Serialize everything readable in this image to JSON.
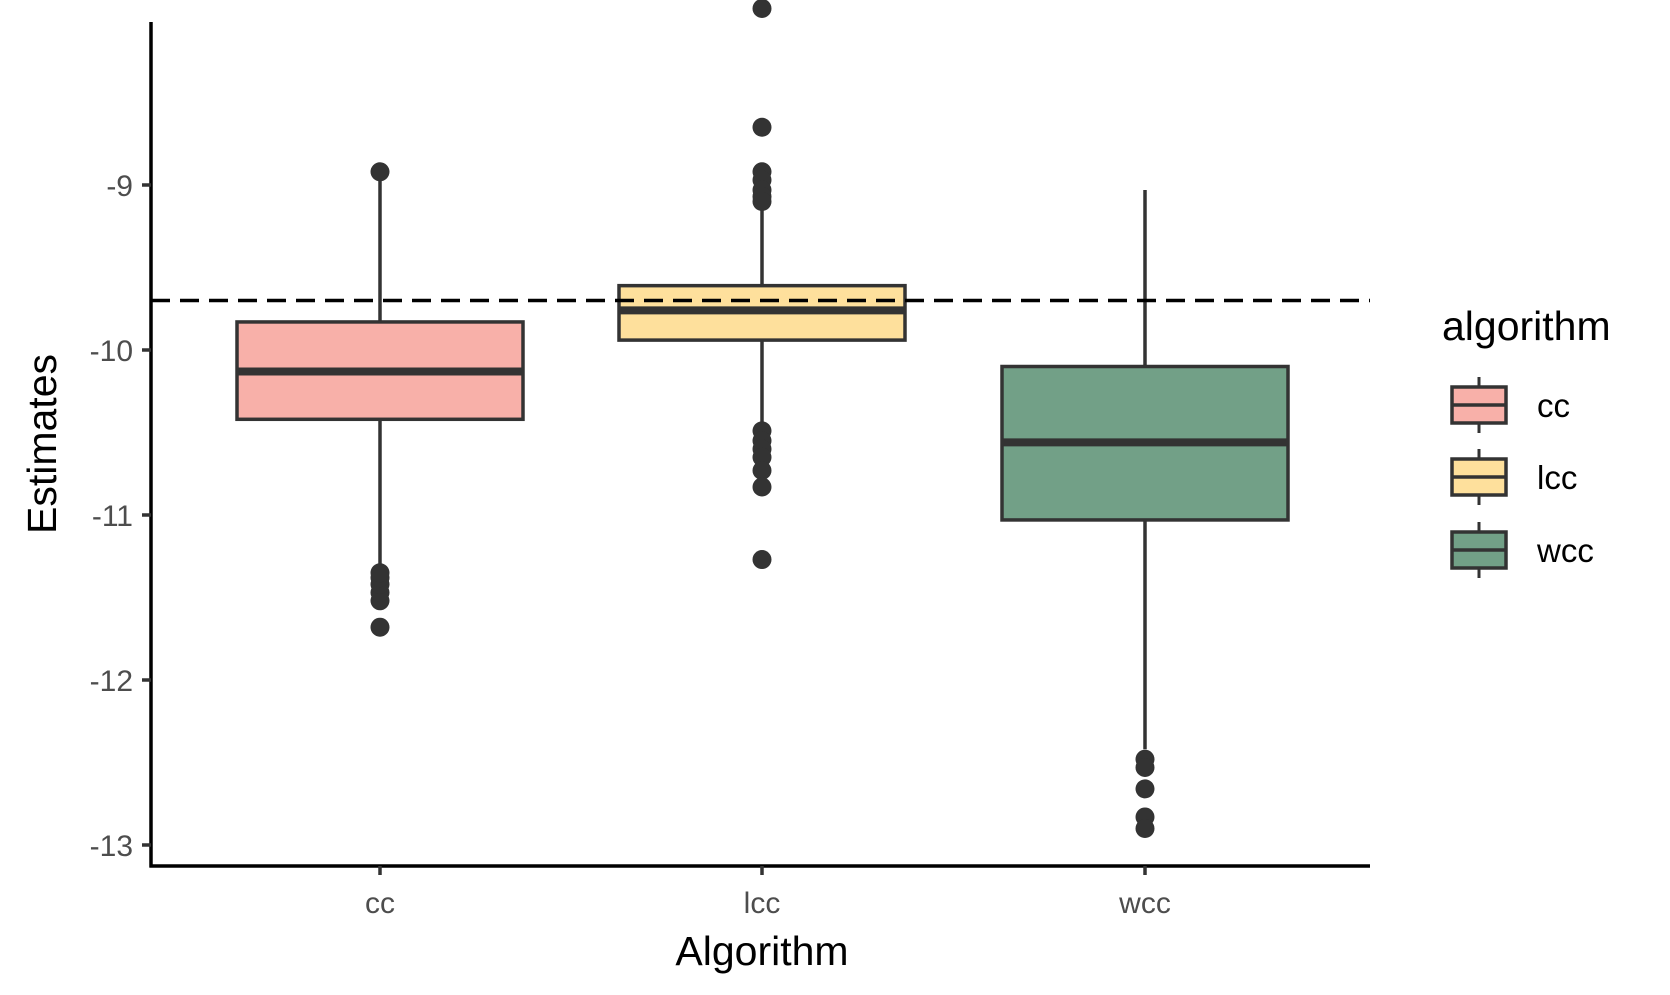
{
  "chart_data": {
    "type": "boxplot",
    "xlabel": "Algorithm",
    "ylabel": "Estimates",
    "ylim": [
      -13.12,
      -7.93
    ],
    "yticks": [
      -9,
      -10,
      -11,
      -12,
      -13
    ],
    "ytick_labels": [
      "-9",
      "-10",
      "-11",
      "-12",
      "-13"
    ],
    "reference_line": {
      "y": -9.7,
      "style": "dashed",
      "color": "#000000"
    },
    "categories": [
      "cc",
      "lcc",
      "wcc"
    ],
    "series": [
      {
        "name": "cc",
        "color": "#f8b0a9",
        "min": -11.3,
        "q1": -10.42,
        "median": -10.13,
        "q3": -9.83,
        "max": -8.93,
        "outliers": [
          -11.68,
          -11.52,
          -11.47,
          -11.42,
          -11.38,
          -11.35,
          -8.92
        ]
      },
      {
        "name": "lcc",
        "color": "#fee09c",
        "min": -10.45,
        "q1": -9.94,
        "median": -9.76,
        "q3": -9.61,
        "max": -9.13,
        "outliers": [
          -7.93,
          -8.65,
          -8.92,
          -8.97,
          -9.03,
          -9.07,
          -9.1,
          -10.49,
          -10.55,
          -10.6,
          -10.65,
          -10.73,
          -10.83,
          -11.27
        ]
      },
      {
        "name": "wcc",
        "color": "#72a087",
        "min": -12.42,
        "q1": -11.03,
        "median": -10.56,
        "q3": -10.1,
        "max": -9.03,
        "outliers": [
          -12.48,
          -12.53,
          -12.66,
          -12.83,
          -12.9
        ]
      }
    ],
    "legend": {
      "title": "algorithm",
      "position": "right",
      "entries": [
        "cc",
        "lcc",
        "wcc"
      ]
    },
    "grid": false,
    "style": {
      "box_stroke": "#333333",
      "axis_color": "#000000",
      "tick_label_color": "#4d4d4d"
    }
  }
}
